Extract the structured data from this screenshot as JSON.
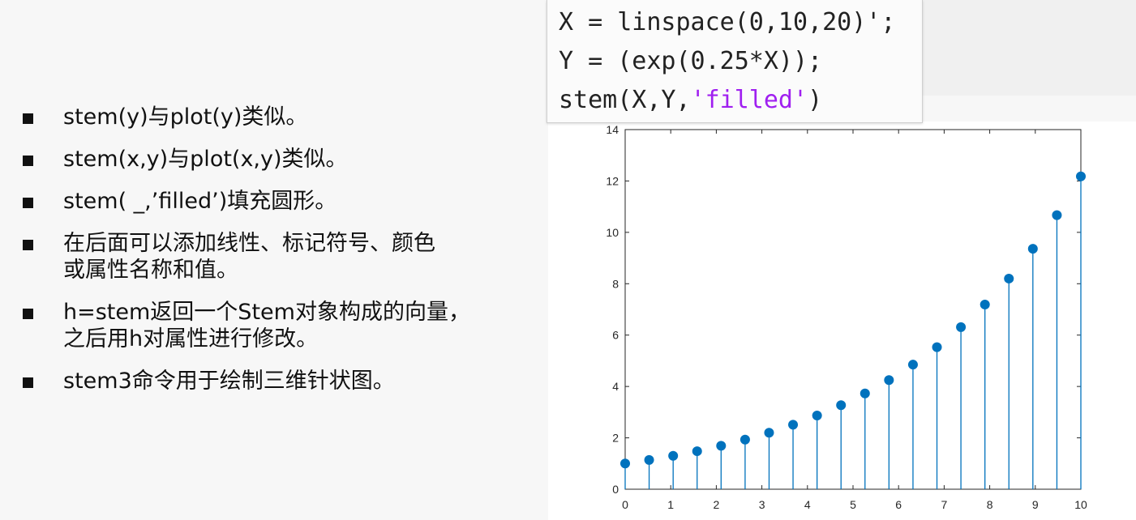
{
  "bullets": [
    "stem(y)与plot(y)类似。",
    "stem(x,y)与plot(x,y)类似。",
    "stem( _,’filled’)填充圆形。",
    "在后面可以添加线性、标记符号、颜色",
    "或属性名称和值。",
    "h=stem返回一个Stem对象构成的向量，",
    "之后用h对属性进行修改。",
    "stem3命令用于绘制三维针状图。"
  ],
  "code": {
    "line1": "X = linspace(0,10,20)';",
    "line2": "Y = (exp(0.25*X));",
    "line3_pre": "stem(X,Y,",
    "line3_str": "'filled'",
    "line3_post": ")"
  },
  "chart_data": {
    "type": "stem",
    "filled": true,
    "color": "#0072bd",
    "xlim": [
      0,
      10
    ],
    "ylim": [
      0,
      14
    ],
    "xticks": [
      0,
      1,
      2,
      3,
      4,
      5,
      6,
      7,
      8,
      9,
      10
    ],
    "yticks": [
      0,
      2,
      4,
      6,
      8,
      10,
      12,
      14
    ],
    "x": [
      0,
      0.526,
      1.053,
      1.579,
      2.105,
      2.632,
      3.158,
      3.684,
      4.211,
      4.737,
      5.263,
      5.789,
      6.316,
      6.842,
      7.368,
      7.895,
      8.421,
      8.947,
      9.474,
      10
    ],
    "y": [
      1.0,
      1.14,
      1.3,
      1.48,
      1.69,
      1.93,
      2.2,
      2.51,
      2.87,
      3.27,
      3.73,
      4.25,
      4.85,
      5.53,
      6.31,
      7.19,
      8.2,
      9.36,
      10.67,
      12.18
    ]
  }
}
